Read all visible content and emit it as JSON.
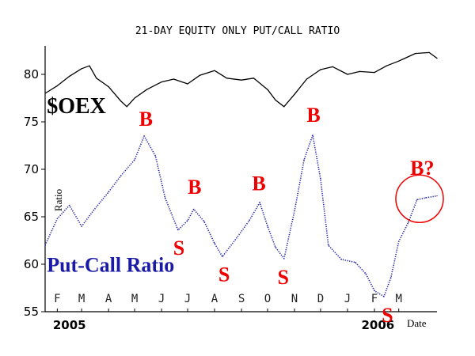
{
  "chart_data": {
    "type": "line",
    "title": "21-DAY EQUITY ONLY PUT/CALL RATIO",
    "xlabel": "Date",
    "ylabel": "Ratio",
    "ylim": [
      55,
      83
    ],
    "yticks": [
      55,
      60,
      65,
      70,
      75,
      80
    ],
    "grid": false,
    "x_range": [
      "2005-01-18",
      "2006-04-14"
    ],
    "month_ticks": [
      {
        "label": "F",
        "date": "2005-02-01"
      },
      {
        "label": "M",
        "date": "2005-03-01"
      },
      {
        "label": "A",
        "date": "2005-04-01"
      },
      {
        "label": "M",
        "date": "2005-05-01"
      },
      {
        "label": "J",
        "date": "2005-06-01"
      },
      {
        "label": "J",
        "date": "2005-07-01"
      },
      {
        "label": "A",
        "date": "2005-08-01"
      },
      {
        "label": "S",
        "date": "2005-09-01"
      },
      {
        "label": "O",
        "date": "2005-10-01"
      },
      {
        "label": "N",
        "date": "2005-11-01"
      },
      {
        "label": "D",
        "date": "2005-12-01"
      },
      {
        "label": "J",
        "date": "2006-01-01"
      },
      {
        "label": "F",
        "date": "2006-02-01"
      },
      {
        "label": "M",
        "date": "2006-03-01"
      }
    ],
    "year_labels": [
      {
        "label": "2005",
        "date": "2005-02-15"
      },
      {
        "label": "2006",
        "date": "2006-02-05"
      }
    ],
    "series": [
      {
        "name": "$OEX",
        "color": "#000000",
        "style": "solid",
        "points": [
          [
            "2005-01-18",
            78.0
          ],
          [
            "2005-02-01",
            78.8
          ],
          [
            "2005-02-15",
            79.8
          ],
          [
            "2005-03-01",
            80.6
          ],
          [
            "2005-03-10",
            80.9
          ],
          [
            "2005-03-18",
            79.6
          ],
          [
            "2005-04-01",
            78.7
          ],
          [
            "2005-04-15",
            77.2
          ],
          [
            "2005-04-22",
            76.6
          ],
          [
            "2005-05-01",
            77.5
          ],
          [
            "2005-05-15",
            78.4
          ],
          [
            "2005-06-01",
            79.2
          ],
          [
            "2005-06-15",
            79.5
          ],
          [
            "2005-07-01",
            79.0
          ],
          [
            "2005-07-15",
            79.9
          ],
          [
            "2005-08-01",
            80.4
          ],
          [
            "2005-08-15",
            79.6
          ],
          [
            "2005-09-01",
            79.4
          ],
          [
            "2005-09-15",
            79.6
          ],
          [
            "2005-10-01",
            78.4
          ],
          [
            "2005-10-10",
            77.3
          ],
          [
            "2005-10-20",
            76.6
          ],
          [
            "2005-11-01",
            77.9
          ],
          [
            "2005-11-15",
            79.5
          ],
          [
            "2005-12-01",
            80.5
          ],
          [
            "2005-12-15",
            80.8
          ],
          [
            "2006-01-01",
            80.0
          ],
          [
            "2006-01-15",
            80.3
          ],
          [
            "2006-02-01",
            80.2
          ],
          [
            "2006-02-15",
            80.9
          ],
          [
            "2006-03-01",
            81.4
          ],
          [
            "2006-03-20",
            82.2
          ],
          [
            "2006-04-05",
            82.3
          ],
          [
            "2006-04-14",
            81.7
          ]
        ]
      },
      {
        "name": "Put-Call Ratio",
        "color": "#1a1aa6",
        "style": "dotted",
        "points": [
          [
            "2005-01-18",
            62.0
          ],
          [
            "2005-02-01",
            64.8
          ],
          [
            "2005-02-15",
            66.2
          ],
          [
            "2005-03-01",
            64.0
          ],
          [
            "2005-03-15",
            65.7
          ],
          [
            "2005-04-01",
            67.6
          ],
          [
            "2005-04-15",
            69.3
          ],
          [
            "2005-05-01",
            71.0
          ],
          [
            "2005-05-12",
            73.5
          ],
          [
            "2005-05-25",
            71.4
          ],
          [
            "2005-06-05",
            67.0
          ],
          [
            "2005-06-20",
            63.6
          ],
          [
            "2005-07-01",
            64.6
          ],
          [
            "2005-07-08",
            65.8
          ],
          [
            "2005-07-20",
            64.5
          ],
          [
            "2005-08-01",
            62.2
          ],
          [
            "2005-08-10",
            60.8
          ],
          [
            "2005-08-25",
            62.6
          ],
          [
            "2005-09-10",
            64.6
          ],
          [
            "2005-09-22",
            66.5
          ],
          [
            "2005-10-01",
            64.0
          ],
          [
            "2005-10-10",
            61.8
          ],
          [
            "2005-10-20",
            60.6
          ],
          [
            "2005-11-01",
            65.6
          ],
          [
            "2005-11-12",
            71.0
          ],
          [
            "2005-11-22",
            73.6
          ],
          [
            "2005-12-01",
            69.0
          ],
          [
            "2005-12-10",
            62.0
          ],
          [
            "2005-12-25",
            60.5
          ],
          [
            "2006-01-10",
            60.2
          ],
          [
            "2006-01-22",
            59.0
          ],
          [
            "2006-02-01",
            57.2
          ],
          [
            "2006-02-12",
            56.6
          ],
          [
            "2006-02-20",
            58.6
          ],
          [
            "2006-03-01",
            62.4
          ],
          [
            "2006-03-12",
            64.4
          ],
          [
            "2006-03-22",
            66.8
          ],
          [
            "2006-04-01",
            67.0
          ],
          [
            "2006-04-14",
            67.2
          ]
        ]
      }
    ],
    "annotations": [
      {
        "text": "$OEX",
        "color": "#000000",
        "x": "2005-01-20",
        "y": 75.9
      },
      {
        "text": "Put-Call Ratio",
        "color": "#1a1aa6",
        "x": "2005-01-20",
        "y": 59.2
      },
      {
        "text": "B",
        "color": "#ee0000",
        "x": "2005-05-14",
        "y": 74.6
      },
      {
        "text": "B",
        "color": "#ee0000",
        "x": "2005-07-09",
        "y": 67.4
      },
      {
        "text": "B",
        "color": "#ee0000",
        "x": "2005-09-21",
        "y": 67.8
      },
      {
        "text": "B",
        "color": "#ee0000",
        "x": "2005-11-23",
        "y": 75.0
      },
      {
        "text": "B?",
        "color": "#ee0000",
        "x": "2006-03-28",
        "y": 69.4
      },
      {
        "text": "S",
        "color": "#ee0000",
        "x": "2005-06-21",
        "y": 61.0
      },
      {
        "text": "S",
        "color": "#ee0000",
        "x": "2005-08-12",
        "y": 58.2
      },
      {
        "text": "S",
        "color": "#ee0000",
        "x": "2005-10-19",
        "y": 57.9
      },
      {
        "text": "S",
        "color": "#ee0000",
        "x": "2006-02-16",
        "y": 53.9
      }
    ],
    "circle_marker": {
      "color": "#ee0000",
      "x": "2006-03-25",
      "y": 66.9
    }
  }
}
